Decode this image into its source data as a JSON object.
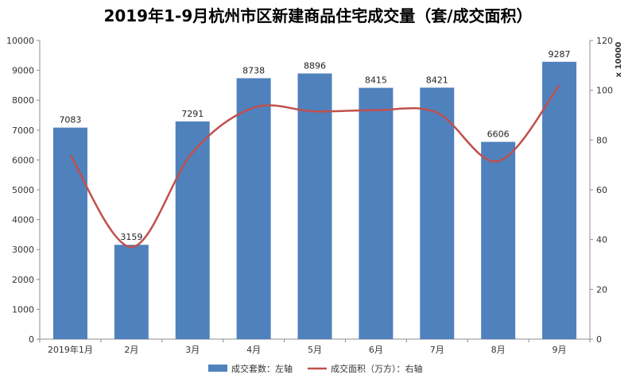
{
  "chart_data": {
    "type": "bar+line",
    "title": "2019年1-9月杭州市区新建商品住宅成交量（套/成交面积）",
    "categories": [
      "2019年1月",
      "2月",
      "3月",
      "4月",
      "5月",
      "6月",
      "7月",
      "8月",
      "9月"
    ],
    "series": [
      {
        "name": "成交套数：左轴",
        "type": "bar",
        "axis": "left",
        "color": "#4F81BD",
        "values": [
          7083,
          3159,
          7291,
          8738,
          8896,
          8415,
          8421,
          6606,
          9287
        ]
      },
      {
        "name": "成交面积（万方）：右轴",
        "type": "line",
        "axis": "right",
        "color": "#C0504D",
        "values": [
          74,
          37,
          75,
          93,
          91.5,
          92,
          91,
          71.5,
          102
        ]
      }
    ],
    "left_axis": {
      "ylim": [
        0,
        10000
      ],
      "ticks": [
        "0",
        "1000",
        "2000",
        "3000",
        "4000",
        "5000",
        "6000",
        "7000",
        "8000",
        "9000",
        "10000"
      ]
    },
    "right_axis": {
      "ylim": [
        0,
        120
      ],
      "ticks": [
        "0",
        "20",
        "40",
        "60",
        "80",
        "100",
        "120"
      ],
      "unit_label": "x 10000"
    },
    "grid": false,
    "legend_position": "bottom"
  }
}
